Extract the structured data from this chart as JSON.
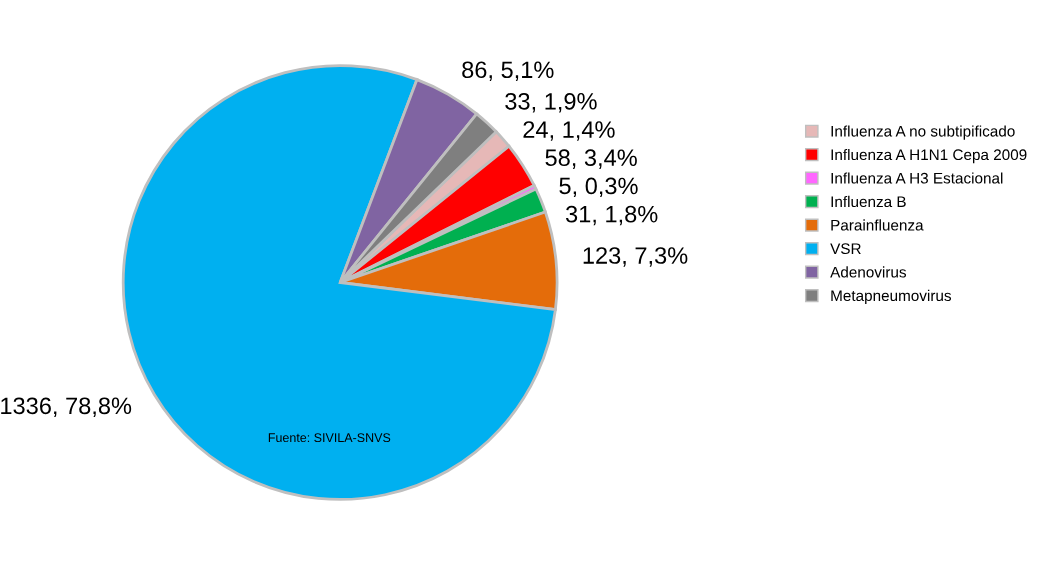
{
  "chart_data": {
    "type": "pie",
    "categories": [
      "Influenza A no subtipificado",
      "Influenza A H1N1 Cepa 2009",
      "Influenza A H3 Estacional",
      "Influenza B",
      "Parainfluenza",
      "VSR",
      "Adenovirus",
      "Metapneumovirus"
    ],
    "values": [
      24,
      58,
      5,
      31,
      123,
      1336,
      86,
      33
    ],
    "colors": [
      "#e6b8b7",
      "#ff0000",
      "#ff66ff",
      "#00b050",
      "#e46c0a",
      "#00b0f0",
      "#8064a2",
      "#7f7f7f"
    ],
    "value_labels": [
      "24, 1,4%",
      "58, 3,4%",
      "5, 0,3%",
      "31, 1,8%",
      "123, 7,3%",
      "1336, 78,8%",
      "86, 5,1%",
      "33, 1,9%"
    ],
    "legend": "right",
    "annotations": [
      "Fuente: SIVILA-SNVS"
    ]
  }
}
